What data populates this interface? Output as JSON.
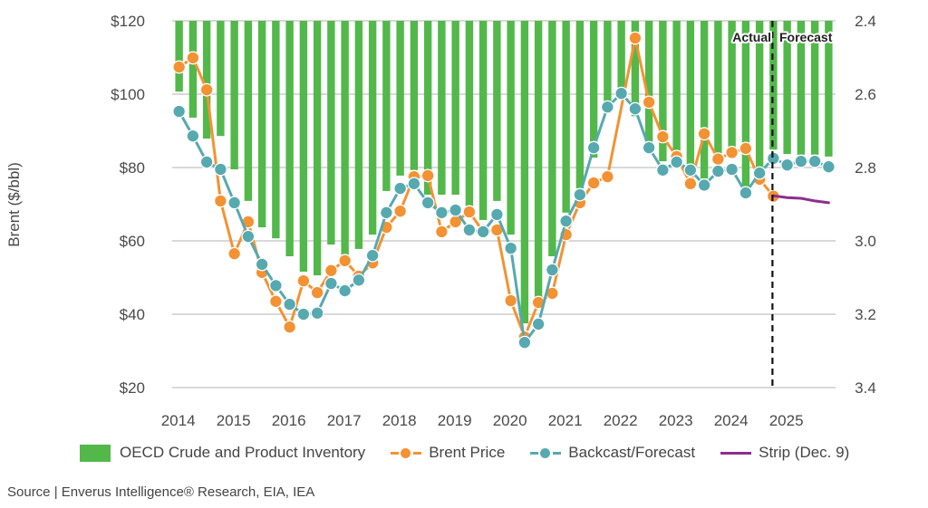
{
  "chart_data": {
    "type": "bar+line",
    "title": "",
    "ylabel": "Brent ($/bbl)",
    "y2label": "",
    "ylim": [
      20,
      120
    ],
    "y2lim": [
      2.4,
      3.4
    ],
    "y2_inverted": true,
    "yticks": [
      "$120",
      "$100",
      "$80",
      "$60",
      "$40",
      "$20"
    ],
    "ytick_values": [
      120,
      100,
      80,
      60,
      40,
      20
    ],
    "y2ticks": [
      "2.4",
      "2.6",
      "2.8",
      "3.0",
      "3.2",
      "3.4"
    ],
    "y2tick_values": [
      2.4,
      2.6,
      2.8,
      3.0,
      3.2,
      3.4
    ],
    "xticks": [
      "2014",
      "2015",
      "2016",
      "2017",
      "2018",
      "2019",
      "2020",
      "2021",
      "2022",
      "2023",
      "2024",
      "2025"
    ],
    "x_periods": "quarterly 2014Q1–2025Q4",
    "grid": true,
    "legend_position": "bottom",
    "annotation": {
      "left": "Actual",
      "right": "Forecast",
      "divider_index": 43
    },
    "series": [
      {
        "name": "OECD Crude and Product Inventory",
        "type": "bar",
        "axis": "right",
        "color": "#52b84a",
        "values": [
          2.593,
          2.664,
          2.721,
          2.714,
          2.805,
          2.891,
          2.963,
          2.993,
          3.042,
          3.084,
          3.094,
          3.01,
          3.04,
          3.022,
          2.983,
          2.864,
          2.822,
          2.807,
          2.874,
          2.874,
          2.874,
          2.906,
          2.943,
          2.891,
          2.983,
          3.225,
          3.153,
          3.042,
          2.923,
          2.857,
          2.773,
          2.652,
          2.6,
          2.66,
          2.738,
          2.783,
          2.756,
          2.795,
          2.83,
          2.768,
          2.751,
          2.862,
          2.812,
          2.751,
          2.763,
          2.765,
          2.765,
          2.77
        ]
      },
      {
        "name": "Brent Price",
        "type": "line",
        "axis": "left",
        "color": "#f39233",
        "values": [
          107.4,
          109.9,
          101.2,
          70.9,
          56.5,
          65.2,
          51.4,
          43.5,
          36.5,
          49.1,
          45.9,
          51.9,
          54.6,
          50.4,
          54.0,
          63.7,
          68.1,
          77.5,
          77.8,
          62.5,
          65.2,
          67.9,
          62.5,
          63.0,
          43.7,
          33.8,
          43.2,
          45.7,
          61.7,
          70.4,
          75.8,
          77.5,
          null,
          115.3,
          97.8,
          88.4,
          83.0,
          75.6,
          89.2,
          82.3,
          84.1,
          85.2,
          76.8,
          72.2,
          null,
          null,
          null,
          null
        ]
      },
      {
        "name": "Backcast/Forecast",
        "type": "line",
        "axis": "left",
        "color": "#57a9b0",
        "values": [
          95.3,
          88.6,
          81.5,
          79.5,
          70.4,
          61.2,
          53.6,
          47.8,
          42.7,
          40.0,
          40.3,
          48.4,
          46.4,
          49.3,
          56.0,
          67.7,
          74.3,
          75.6,
          70.4,
          67.7,
          68.4,
          63.0,
          62.5,
          67.2,
          58.0,
          32.3,
          37.3,
          52.1,
          65.4,
          72.6,
          85.4,
          96.5,
          100.2,
          96.0,
          85.4,
          79.3,
          81.5,
          79.3,
          75.2,
          79.0,
          79.5,
          73.1,
          78.5,
          82.5,
          80.7,
          81.7,
          81.7,
          80.2
        ]
      },
      {
        "name": "Strip (Dec. 9)",
        "type": "line",
        "axis": "left",
        "color": "#8e2d8e",
        "values": [
          null,
          null,
          null,
          null,
          null,
          null,
          null,
          null,
          null,
          null,
          null,
          null,
          null,
          null,
          null,
          null,
          null,
          null,
          null,
          null,
          null,
          null,
          null,
          null,
          null,
          null,
          null,
          null,
          null,
          null,
          null,
          null,
          null,
          null,
          null,
          null,
          null,
          null,
          null,
          null,
          null,
          null,
          null,
          72.3,
          71.8,
          71.6,
          70.9,
          70.4
        ]
      }
    ]
  },
  "legend": [
    {
      "label": "OECD Crude and Product Inventory",
      "kind": "swatch",
      "color": "#52b84a"
    },
    {
      "label": "Brent Price",
      "kind": "line-marker",
      "color": "#f39233"
    },
    {
      "label": "Backcast/Forecast",
      "kind": "line-marker",
      "color": "#57a9b0"
    },
    {
      "label": "Strip (Dec. 9)",
      "kind": "line",
      "color": "#8e2d8e"
    }
  ],
  "source": "Source | Enverus Intelligence® Research, EIA, IEA"
}
